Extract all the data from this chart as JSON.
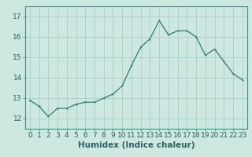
{
  "x": [
    0,
    1,
    2,
    3,
    4,
    5,
    6,
    7,
    8,
    9,
    10,
    11,
    12,
    13,
    14,
    15,
    16,
    17,
    18,
    19,
    20,
    21,
    22,
    23
  ],
  "y": [
    12.9,
    12.6,
    12.1,
    12.5,
    12.5,
    12.7,
    12.8,
    12.8,
    13.0,
    13.2,
    13.6,
    14.6,
    15.5,
    15.9,
    16.8,
    16.1,
    16.3,
    16.3,
    16.0,
    15.1,
    15.4,
    14.8,
    14.2,
    13.9
  ],
  "line_color": "#2e7d6e",
  "marker": "*",
  "marker_size": 2.5,
  "background_color": "#cce8e0",
  "grid_color": "#aacccc",
  "xlabel": "Humidex (Indice chaleur)",
  "ylim": [
    11.5,
    17.5
  ],
  "xlim": [
    -0.5,
    23.5
  ],
  "yticks": [
    12,
    13,
    14,
    15,
    16,
    17
  ],
  "xticks": [
    0,
    1,
    2,
    3,
    4,
    5,
    6,
    7,
    8,
    9,
    10,
    11,
    12,
    13,
    14,
    15,
    16,
    17,
    18,
    19,
    20,
    21,
    22,
    23
  ],
  "tick_fontsize": 6.5,
  "xlabel_fontsize": 7.5,
  "line_width": 0.9
}
